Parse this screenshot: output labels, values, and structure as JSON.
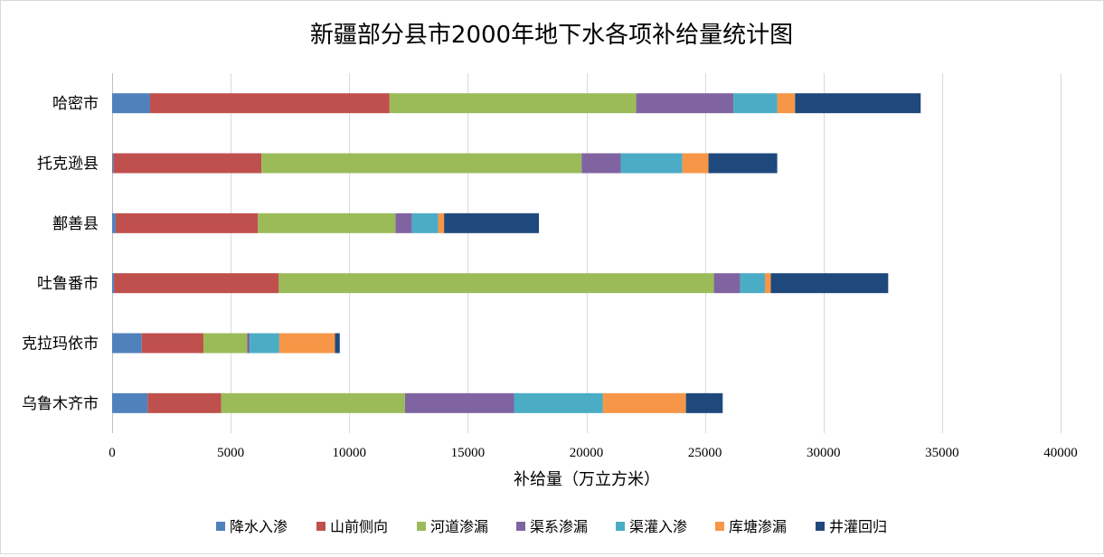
{
  "chart_data": {
    "type": "bar",
    "orientation": "horizontal",
    "stacked": true,
    "title": "新疆部分县市2000年地下水各项补给量统计图",
    "xlabel": "补给量（万立方米）",
    "ylabel": "",
    "xlim": [
      0,
      40000
    ],
    "xticks": [
      0,
      5000,
      10000,
      15000,
      20000,
      25000,
      30000,
      35000,
      40000
    ],
    "grid": "vertical",
    "legend_position": "bottom",
    "categories": [
      "哈密市",
      "托克逊县",
      "鄯善县",
      "吐鲁番市",
      "克拉玛依市",
      "乌鲁木齐市"
    ],
    "series": [
      {
        "name": "降水入渗",
        "color": "#4f81bd",
        "values": [
          1600,
          50,
          150,
          80,
          1250,
          1500
        ]
      },
      {
        "name": "山前侧向",
        "color": "#c0504d",
        "values": [
          10100,
          6250,
          6000,
          6950,
          2600,
          3100
        ]
      },
      {
        "name": "河道渗漏",
        "color": "#9bbb59",
        "values": [
          10400,
          13500,
          5800,
          18350,
          1850,
          7750
        ]
      },
      {
        "name": "渠系渗漏",
        "color": "#8064a2",
        "values": [
          4100,
          1650,
          700,
          1100,
          100,
          4600
        ]
      },
      {
        "name": "渠灌入渗",
        "color": "#4bacc6",
        "values": [
          1850,
          2600,
          1100,
          1050,
          1250,
          3750
        ]
      },
      {
        "name": "库塘渗漏",
        "color": "#f79646",
        "values": [
          750,
          1100,
          250,
          250,
          2350,
          3500
        ]
      },
      {
        "name": "井灌回归",
        "color": "#1f497d",
        "values": [
          5300,
          2900,
          4000,
          4950,
          200,
          1550
        ]
      }
    ]
  }
}
